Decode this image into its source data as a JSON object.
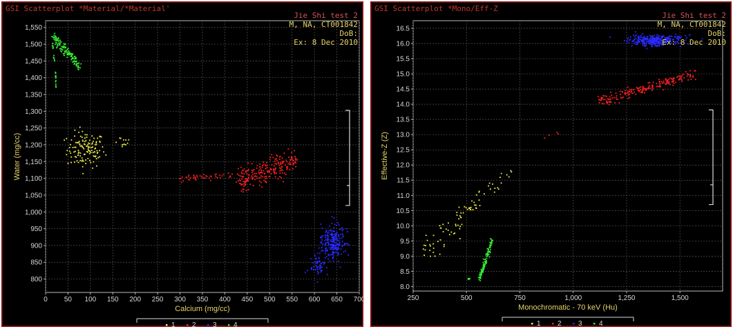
{
  "colors": {
    "1": "#f0ef4a",
    "2": "#ff2020",
    "3": "#2a2aff",
    "4": "#33ee33"
  },
  "patient": {
    "name": "Jie Shi test 2",
    "info": "M, NA, CT001842",
    "dob": "DoB:",
    "exam": "Ex: 8 Dec 2010"
  },
  "legend": [
    "1",
    "2",
    "3",
    "4"
  ],
  "chart_data": [
    {
      "type": "scatter",
      "title": "GSI Scatterplot *Material/*Material'",
      "xlabel": "Calcium (mg/cc)",
      "ylabel": "Water (mg/cc)",
      "xlim": [
        0,
        700
      ],
      "ylim": [
        760,
        1570
      ],
      "xticks": [
        0,
        50,
        100,
        150,
        200,
        250,
        300,
        350,
        400,
        450,
        500,
        550,
        600,
        650,
        700
      ],
      "xtick_labels": [
        "0",
        "50",
        "100",
        "150",
        "200",
        "250",
        "300",
        "350",
        "400",
        "450",
        "500",
        "550",
        "600",
        "650",
        "700"
      ],
      "yticks": [
        800,
        850,
        900,
        950,
        1000,
        1050,
        1100,
        1150,
        1200,
        1250,
        1300,
        1350,
        1400,
        1450,
        1500,
        1550
      ],
      "ytick_labels": [
        "800",
        "850",
        "900",
        "950",
        "1,000",
        "1,050",
        "1,100",
        "1,150",
        "1,200",
        "1,250",
        "1,300",
        "1,350",
        "1,400",
        "1,450",
        "1,500",
        "1,550"
      ],
      "grid": true,
      "series": [
        {
          "name": "1",
          "clusters": [
            {
              "type": "blob",
              "cx": 90,
              "cy": 1185,
              "sx": 35,
              "sy": 45,
              "n": 130
            },
            {
              "type": "blob",
              "cx": 170,
              "cy": 1210,
              "sx": 20,
              "sy": 15,
              "n": 12
            }
          ]
        },
        {
          "name": "2",
          "clusters": [
            {
              "type": "line",
              "x0": 300,
              "y0": 1100,
              "x1": 420,
              "y1": 1112,
              "spread": 10,
              "n": 45
            },
            {
              "type": "line",
              "x0": 430,
              "y0": 1090,
              "x1": 560,
              "y1": 1160,
              "spread": 28,
              "n": 230
            }
          ]
        },
        {
          "name": "3",
          "clusters": [
            {
              "type": "blob",
              "cx": 640,
              "cy": 910,
              "sx": 22,
              "sy": 45,
              "n": 230
            },
            {
              "type": "blob",
              "cx": 610,
              "cy": 840,
              "sx": 15,
              "sy": 30,
              "n": 60
            }
          ]
        },
        {
          "name": "4",
          "clusters": [
            {
              "type": "line",
              "x0": 15,
              "y0": 1525,
              "x1": 75,
              "y1": 1435,
              "spread": 14,
              "n": 140
            },
            {
              "type": "line",
              "x0": 22,
              "y0": 1420,
              "x1": 24,
              "y1": 1350,
              "spread": 3,
              "n": 14
            },
            {
              "type": "line",
              "x0": 15,
              "y0": 1505,
              "x1": 20,
              "y1": 1450,
              "spread": 4,
              "n": 14
            }
          ]
        }
      ]
    },
    {
      "type": "scatter",
      "title": "GSI Scatterplot *Mono/Eff-Z",
      "xlabel": "Monochromatic - 70 keV (Hu)",
      "ylabel": "Effective-Z (Z)",
      "xlim": [
        250,
        1700
      ],
      "ylim": [
        7.85,
        16.75
      ],
      "xticks": [
        250,
        500,
        750,
        1000,
        1250,
        1500
      ],
      "xtick_labels": [
        "250",
        "500",
        "750",
        "1,000",
        "1,250",
        "1,500"
      ],
      "yticks": [
        8,
        8.5,
        9,
        9.5,
        10,
        10.5,
        11,
        11.5,
        12,
        12.5,
        13,
        13.5,
        14,
        14.5,
        15,
        15.5,
        16,
        16.5
      ],
      "ytick_labels": [
        "8.0",
        "8.5",
        "9.0",
        "9.5",
        "10.0",
        "10.5",
        "11.0",
        "11.5",
        "12.0",
        "12.5",
        "13.0",
        "13.5",
        "14.0",
        "14.5",
        "15.0",
        "15.5",
        "16.0",
        "16.5"
      ],
      "grid": true,
      "series": [
        {
          "name": "1",
          "clusters": [
            {
              "type": "line",
              "x0": 300,
              "y0": 9.1,
              "x1": 560,
              "y1": 10.8,
              "spread": 0.35,
              "n": 70
            },
            {
              "type": "line",
              "x0": 580,
              "y0": 11.0,
              "x1": 760,
              "y1": 12.1,
              "spread": 0.2,
              "n": 16
            }
          ]
        },
        {
          "name": "2",
          "clusters": [
            {
              "type": "line",
              "x0": 1120,
              "y0": 14.1,
              "x1": 1580,
              "y1": 15.0,
              "spread": 0.15,
              "n": 200
            },
            {
              "type": "line",
              "x0": 860,
              "y0": 12.8,
              "x1": 970,
              "y1": 13.2,
              "spread": 0.1,
              "n": 4
            }
          ]
        },
        {
          "name": "3",
          "clusters": [
            {
              "type": "blob",
              "cx": 1380,
              "cy": 16.1,
              "sx": 110,
              "sy": 0.15,
              "n": 330
            }
          ]
        },
        {
          "name": "4",
          "clusters": [
            {
              "type": "line",
              "x0": 560,
              "y0": 8.25,
              "x1": 620,
              "y1": 9.5,
              "spread": 0.1,
              "n": 110
            },
            {
              "type": "blob",
              "cx": 510,
              "cy": 8.25,
              "sx": 8,
              "sy": 0.03,
              "n": 8
            }
          ]
        }
      ]
    }
  ]
}
